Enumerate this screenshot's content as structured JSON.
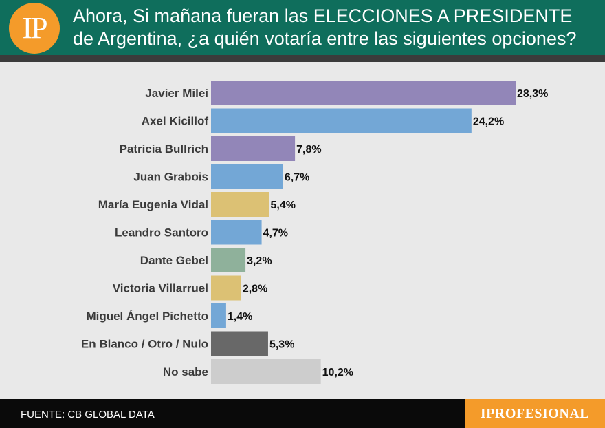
{
  "header": {
    "logo_text": "IP",
    "title": "Ahora, Si mañana fueran las ELECCIONES A PRESIDENTE de Argentina, ¿a quién votaría entre las siguientes opciones?"
  },
  "footer": {
    "source": "FUENTE: CB GLOBAL DATA",
    "brand": "IPROFESIONAL"
  },
  "colors": {
    "header_bg": "#0f6e5c",
    "logo_bg": "#f49b2a",
    "purple": "#9286b8",
    "blue": "#73a7d6",
    "yellow": "#dcc174",
    "green": "#8fb19b",
    "dark_gray": "#686868",
    "light_gray": "#cdcdcd"
  },
  "chart_data": {
    "type": "bar",
    "orientation": "horizontal",
    "title": "Ahora, Si mañana fueran las ELECCIONES A PRESIDENTE de Argentina, ¿a quién votaría entre las siguientes opciones?",
    "xlabel": "",
    "ylabel": "",
    "xlim": [
      0,
      28.3
    ],
    "grid": false,
    "categories": [
      "Javier Milei",
      "Axel Kicillof",
      "Patricia Bullrich",
      "Juan Grabois",
      "María Eugenia Vidal",
      "Leandro Santoro",
      "Dante Gebel",
      "Victoria Villarruel",
      "Miguel Ángel Pichetto",
      "En Blanco / Otro / Nulo",
      "No sabe"
    ],
    "values": [
      28.3,
      24.2,
      7.8,
      6.7,
      5.4,
      4.7,
      3.2,
      2.8,
      1.4,
      5.3,
      10.2
    ],
    "value_labels": [
      "28,3%",
      "24,2%",
      "7,8%",
      "6,7%",
      "5,4%",
      "4,7%",
      "3,2%",
      "2,8%",
      "1,4%",
      "5,3%",
      "10,2%"
    ],
    "bar_colors": [
      "#9286b8",
      "#73a7d6",
      "#9286b8",
      "#73a7d6",
      "#dcc174",
      "#73a7d6",
      "#8fb19b",
      "#dcc174",
      "#73a7d6",
      "#686868",
      "#cdcdcd"
    ]
  }
}
